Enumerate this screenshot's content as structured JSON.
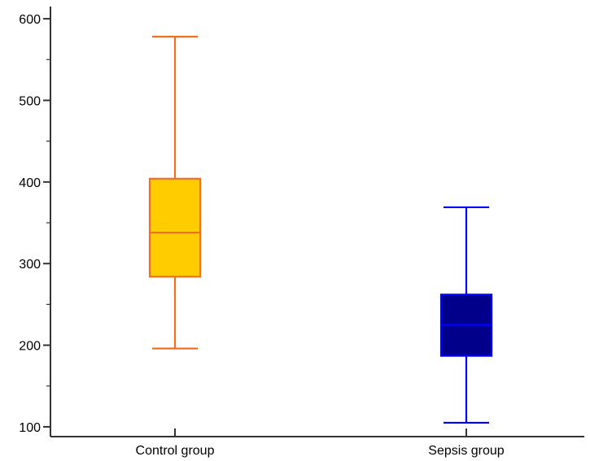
{
  "chart_data": {
    "type": "boxplot",
    "categories": [
      "Control group",
      "Sepsis group"
    ],
    "boxes": [
      {
        "category": "Control group",
        "min": 196,
        "q1": 284,
        "median": 338,
        "q3": 404,
        "max": 578
      },
      {
        "category": "Sepsis group",
        "min": 105,
        "q1": 187,
        "median": 225,
        "q3": 262,
        "max": 369
      }
    ],
    "ylim": [
      88,
      615
    ],
    "yticks": [
      100,
      200,
      300,
      400,
      500,
      600
    ],
    "yticks_minor": [
      150,
      250,
      350,
      450,
      550
    ],
    "ytick_labels": [
      "100",
      "200",
      "300",
      "400",
      "500",
      "600"
    ],
    "colors": {
      "control_fill": "#FFCC00",
      "control_stroke": "#F07020",
      "sepsis_fill": "#00008B",
      "sepsis_stroke": "#0000FF",
      "axis": "#333333"
    },
    "grid": false,
    "title": "",
    "xlabel": "",
    "ylabel": ""
  }
}
